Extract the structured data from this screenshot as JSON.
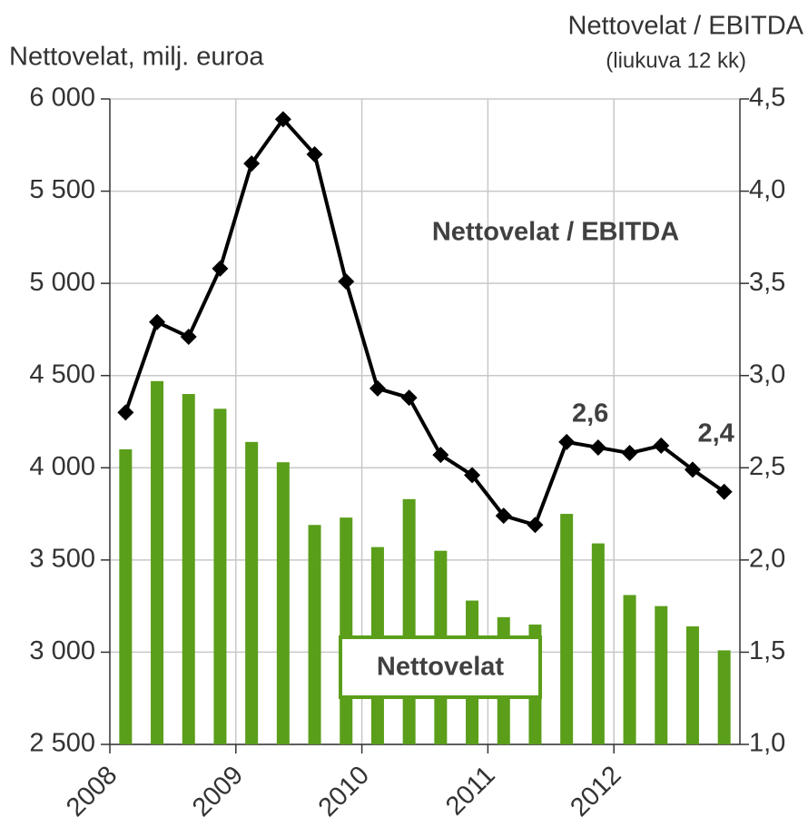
{
  "chart_data": {
    "type": "bar-line",
    "y_label": "Nettovelat, milj. euroa",
    "y2_label": "Nettovelat / EBITDA",
    "y2_sublabel": "(liukuva 12 kk)",
    "annotations": [
      "Nettovelat / EBITDA",
      "Nettovelat"
    ],
    "x": [
      2008.125,
      2008.375,
      2008.625,
      2008.875,
      2009.125,
      2009.375,
      2009.625,
      2009.875,
      2010.125,
      2010.375,
      2010.625,
      2010.875,
      2011.125,
      2011.375,
      2011.625,
      2011.875,
      2012.125,
      2012.375,
      2012.625,
      2012.875
    ],
    "series": [
      {
        "name": "Nettovelat",
        "type": "bar",
        "color": "#5a9e1a",
        "values": [
          4100,
          4470,
          4400,
          4320,
          4140,
          4030,
          3690,
          3730,
          3570,
          3830,
          3550,
          3280,
          3190,
          3150,
          3750,
          3590,
          3310,
          3250,
          3140,
          3010
        ]
      },
      {
        "name": "Nettovelat / EBITDA",
        "type": "line",
        "axis": "y2",
        "color": "#000000",
        "values": [
          2.8,
          3.29,
          3.21,
          3.58,
          4.15,
          4.39,
          4.2,
          3.51,
          2.93,
          2.88,
          2.57,
          2.46,
          2.24,
          2.19,
          2.64,
          2.61,
          2.58,
          2.62,
          2.49,
          2.37
        ],
        "value_labels": [
          null,
          null,
          null,
          null,
          null,
          null,
          null,
          null,
          null,
          null,
          null,
          null,
          null,
          null,
          "2,6",
          null,
          null,
          null,
          null,
          "2,4"
        ]
      }
    ],
    "xlim": [
      2008,
      2013
    ],
    "xticks": [
      2008,
      2009,
      2010,
      2011,
      2012
    ],
    "ylim": [
      2500,
      6000
    ],
    "yticks": [
      {
        "value": 2500,
        "label": "2 500"
      },
      {
        "value": 3000,
        "label": "3 000"
      },
      {
        "value": 3500,
        "label": "3 500"
      },
      {
        "value": 4000,
        "label": "4 000"
      },
      {
        "value": 4500,
        "label": "4 500"
      },
      {
        "value": 5000,
        "label": "5 000"
      },
      {
        "value": 5500,
        "label": "5 500"
      },
      {
        "value": 6000,
        "label": "6 000"
      }
    ],
    "y2lim": [
      1.0,
      4.5
    ],
    "y2ticks": [
      {
        "value": 1.0,
        "label": "1,0"
      },
      {
        "value": 1.5,
        "label": "1,5"
      },
      {
        "value": 2.0,
        "label": "2,0"
      },
      {
        "value": 2.5,
        "label": "2,5"
      },
      {
        "value": 3.0,
        "label": "3,0"
      },
      {
        "value": 3.5,
        "label": "3,5"
      },
      {
        "value": 4.0,
        "label": "4,0"
      },
      {
        "value": 4.5,
        "label": "4,5"
      }
    ],
    "grid": true
  }
}
